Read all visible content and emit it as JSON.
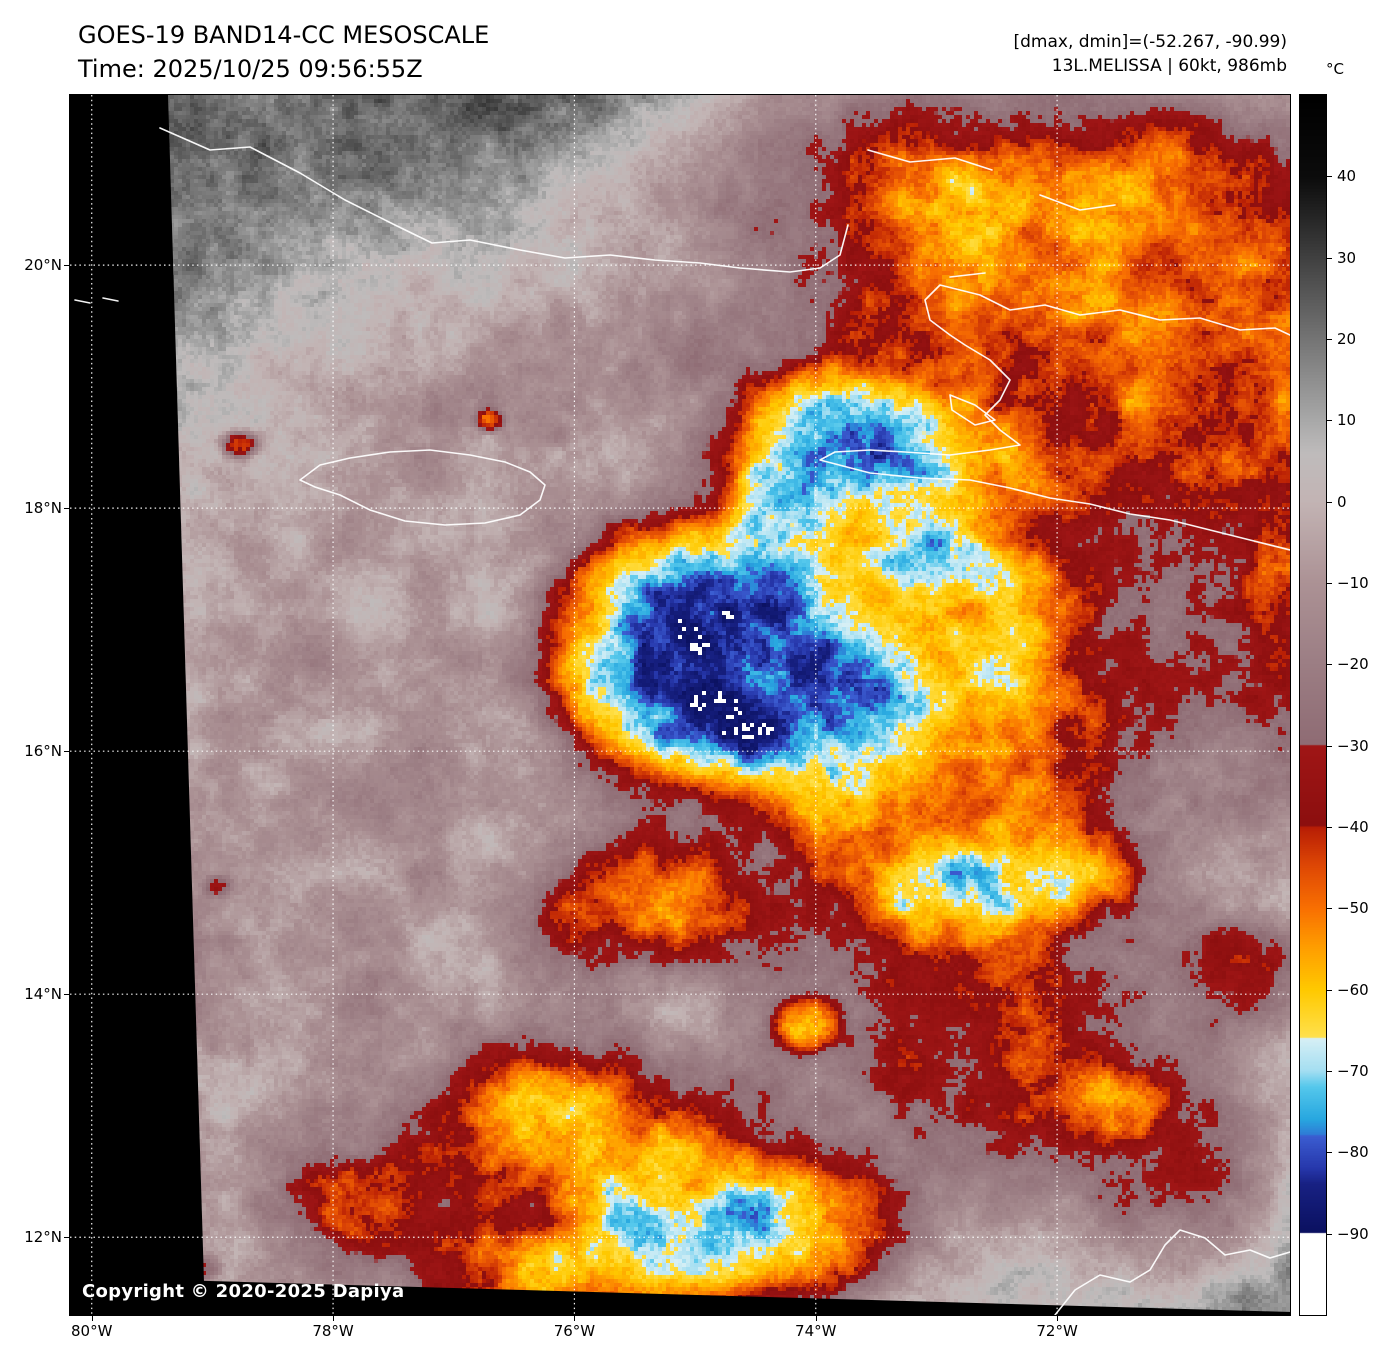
{
  "header": {
    "title": "GOES-19 BAND14-CC MESOSCALE",
    "time_line": "Time: 2025/10/25 09:56:55Z",
    "range_line": "[dmax, dmin]=(-52.267, -90.99)",
    "storm_line": "13L.MELISSA | 60kt, 986mb"
  },
  "map": {
    "copyright": "Copyright © 2020-2025 Dapiya",
    "extent": {
      "lon_min": -80.18,
      "lon_max": -70.07,
      "lat_min": 11.36,
      "lat_max": 21.4
    },
    "lat_ticks": [
      {
        "label": "20°N",
        "value": 20
      },
      {
        "label": "18°N",
        "value": 18
      },
      {
        "label": "16°N",
        "value": 16
      },
      {
        "label": "14°N",
        "value": 14
      },
      {
        "label": "12°N",
        "value": 12
      }
    ],
    "lon_ticks": [
      {
        "label": "80°W",
        "value": -80
      },
      {
        "label": "78°W",
        "value": -78
      },
      {
        "label": "76°W",
        "value": -76
      },
      {
        "label": "74°W",
        "value": -74
      },
      {
        "label": "72°W",
        "value": -72
      }
    ]
  },
  "colorbar": {
    "unit": "°C",
    "domain": [
      50,
      -100
    ],
    "below_value": -90,
    "below_color": "#ffffff",
    "ticks": [
      {
        "label": "40",
        "value": 40
      },
      {
        "label": "30",
        "value": 30
      },
      {
        "label": "20",
        "value": 20
      },
      {
        "label": "10",
        "value": 10
      },
      {
        "label": "0",
        "value": 0
      },
      {
        "label": "−10",
        "value": -10
      },
      {
        "label": "−20",
        "value": -20
      },
      {
        "label": "−30",
        "value": -30
      },
      {
        "label": "−40",
        "value": -40
      },
      {
        "label": "−50",
        "value": -50
      },
      {
        "label": "−60",
        "value": -60
      },
      {
        "label": "−70",
        "value": -70
      },
      {
        "label": "−80",
        "value": -80
      },
      {
        "label": "−90",
        "value": -90
      }
    ],
    "stops": [
      [
        50,
        "#000000"
      ],
      [
        40,
        "#0c0c0c"
      ],
      [
        30,
        "#414141"
      ],
      [
        20,
        "#757575"
      ],
      [
        10,
        "#a9a9a9"
      ],
      [
        6,
        "#bfbcbc"
      ],
      [
        0,
        "#c3b4b4"
      ],
      [
        -10,
        "#ac9295"
      ],
      [
        -20,
        "#9c7e84"
      ],
      [
        -29.9,
        "#8f6c74"
      ],
      [
        -30,
        "#a01616"
      ],
      [
        -39.9,
        "#8c0f0f"
      ],
      [
        -40,
        "#b81e06"
      ],
      [
        -45,
        "#e04a05"
      ],
      [
        -50,
        "#f97002"
      ],
      [
        -55,
        "#ffa000"
      ],
      [
        -60,
        "#ffc900"
      ],
      [
        -65.9,
        "#ffe14d"
      ],
      [
        -66,
        "#d8f0f6"
      ],
      [
        -70,
        "#a5dff2"
      ],
      [
        -72,
        "#55c8ec"
      ],
      [
        -76,
        "#28a8e0"
      ],
      [
        -77.9,
        "#2f7ad6"
      ],
      [
        -78,
        "#3c5ed2"
      ],
      [
        -82,
        "#2738ac"
      ],
      [
        -84,
        "#182183"
      ],
      [
        -90,
        "#0b1160"
      ]
    ]
  },
  "field": {
    "feature_format": "[lon, lat, sigma_lon, sigma_lat, cooling_amp_C, shape_exponent]",
    "features": [
      [
        -74.95,
        16.8,
        1.3,
        1.08,
        75,
        2.5
      ],
      [
        -75.05,
        16.95,
        0.6,
        0.5,
        14,
        2.0
      ],
      [
        -73.2,
        16.4,
        1.75,
        2.0,
        58,
        1.4
      ],
      [
        -73.9,
        18.35,
        0.95,
        0.8,
        52,
        1.6
      ],
      [
        -73.55,
        16.15,
        0.5,
        0.42,
        30,
        1.5
      ],
      [
        -73.0,
        17.45,
        0.55,
        0.45,
        30,
        1.5
      ],
      [
        -72.85,
        14.8,
        0.55,
        0.45,
        34,
        1.5
      ],
      [
        -71.85,
        15.0,
        0.5,
        0.4,
        30,
        1.5
      ],
      [
        -70.45,
        14.15,
        0.55,
        0.5,
        36,
        1.5
      ],
      [
        -71.5,
        13.1,
        0.4,
        0.35,
        28,
        1.5
      ],
      [
        -70.6,
        12.85,
        0.6,
        0.5,
        24,
        1.3
      ],
      [
        -72.2,
        13.5,
        1.35,
        1.1,
        30,
        1.2
      ],
      [
        -71.8,
        19.9,
        2.8,
        1.7,
        38,
        1.6
      ],
      [
        -69.6,
        17.2,
        1.5,
        1.9,
        34,
        1.5
      ],
      [
        -73.6,
        21.1,
        1.7,
        0.9,
        26,
        1.2
      ],
      [
        -75.5,
        14.75,
        0.9,
        0.55,
        42,
        1.3
      ],
      [
        -76.35,
        13.0,
        0.95,
        0.62,
        52,
        1.3
      ],
      [
        -76.2,
        13.2,
        0.5,
        0.3,
        12,
        1.5
      ],
      [
        -75.1,
        12.3,
        1.05,
        0.72,
        54,
        1.3
      ],
      [
        -74.0,
        12.05,
        0.85,
        0.6,
        46,
        1.3
      ],
      [
        -74.05,
        13.75,
        0.3,
        0.24,
        48,
        1.8
      ],
      [
        -75.6,
        11.6,
        0.9,
        0.5,
        44,
        1.3
      ],
      [
        -77.7,
        12.3,
        0.72,
        0.45,
        34,
        1.3
      ],
      [
        -76.85,
        11.7,
        0.6,
        0.4,
        38,
        1.3
      ],
      [
        -70.9,
        12.2,
        0.8,
        0.6,
        26,
        1.3
      ],
      [
        -78.78,
        18.52,
        0.15,
        0.11,
        42,
        1.5
      ],
      [
        -76.7,
        18.72,
        0.12,
        0.09,
        36,
        1.5
      ],
      [
        -78.95,
        14.9,
        0.12,
        0.09,
        22,
        1.5
      ],
      [
        -79.05,
        11.75,
        0.13,
        0.09,
        24,
        1.5
      ]
    ],
    "mask_blobs": [
      [
        -74.8,
        15.8,
        5.2,
        4.6
      ],
      [
        -78.5,
        13.2,
        3.6,
        3.2
      ],
      [
        -71.5,
        19.0,
        3.0,
        2.5
      ]
    ],
    "nodata_polygons": [
      {
        "name": "sector-left-edge",
        "points": [
          [
            0,
            0
          ],
          [
            98,
            0
          ],
          [
            135,
            1220
          ],
          [
            0,
            1220
          ]
        ]
      },
      {
        "name": "sector-bottom-edge",
        "points": [
          [
            0,
            1182
          ],
          [
            1220,
            1217
          ],
          [
            1220,
            1220
          ],
          [
            0,
            1220
          ]
        ]
      }
    ]
  },
  "coastlines": [
    {
      "name": "cuba-south-coast",
      "points": [
        [
          90,
          33
        ],
        [
          140,
          55
        ],
        [
          180,
          52
        ],
        [
          230,
          78
        ],
        [
          275,
          105
        ],
        [
          325,
          130
        ],
        [
          362,
          148
        ],
        [
          400,
          145
        ],
        [
          450,
          155
        ],
        [
          495,
          163
        ],
        [
          540,
          160
        ],
        [
          585,
          165
        ],
        [
          630,
          168
        ],
        [
          670,
          173
        ],
        [
          720,
          177
        ],
        [
          750,
          173
        ],
        [
          770,
          160
        ],
        [
          778,
          130
        ]
      ]
    },
    {
      "name": "bahamas-cays-1",
      "points": [
        [
          798,
          55
        ],
        [
          840,
          67
        ],
        [
          885,
          63
        ],
        [
          922,
          75
        ]
      ]
    },
    {
      "name": "bahamas-cays-2",
      "points": [
        [
          970,
          100
        ],
        [
          1010,
          115
        ],
        [
          1045,
          110
        ]
      ]
    },
    {
      "name": "tortuga-island",
      "points": [
        [
          880,
          182
        ],
        [
          915,
          178
        ]
      ]
    },
    {
      "name": "hispaniola",
      "points": [
        [
          1220,
          240
        ],
        [
          1205,
          233
        ],
        [
          1170,
          235
        ],
        [
          1130,
          223
        ],
        [
          1090,
          225
        ],
        [
          1050,
          215
        ],
        [
          1010,
          220
        ],
        [
          975,
          210
        ],
        [
          940,
          215
        ],
        [
          910,
          200
        ],
        [
          870,
          190
        ],
        [
          855,
          205
        ],
        [
          860,
          225
        ],
        [
          880,
          240
        ],
        [
          895,
          250
        ],
        [
          920,
          265
        ],
        [
          940,
          285
        ],
        [
          930,
          305
        ],
        [
          915,
          320
        ],
        [
          930,
          335
        ],
        [
          950,
          350
        ],
        [
          920,
          355
        ],
        [
          880,
          360
        ],
        [
          835,
          357
        ],
        [
          800,
          355
        ],
        [
          765,
          357
        ],
        [
          750,
          365
        ],
        [
          800,
          378
        ],
        [
          850,
          383
        ],
        [
          900,
          385
        ],
        [
          940,
          393
        ],
        [
          980,
          403
        ],
        [
          1020,
          409
        ],
        [
          1060,
          419
        ],
        [
          1100,
          425
        ],
        [
          1140,
          435
        ],
        [
          1180,
          445
        ],
        [
          1220,
          455
        ]
      ]
    },
    {
      "name": "gonave-island",
      "points": [
        [
          880,
          300
        ],
        [
          905,
          310
        ],
        [
          925,
          325
        ],
        [
          905,
          330
        ],
        [
          882,
          315
        ],
        [
          880,
          300
        ]
      ]
    },
    {
      "name": "jamaica",
      "points": [
        [
          230,
          385
        ],
        [
          250,
          370
        ],
        [
          280,
          363
        ],
        [
          320,
          357
        ],
        [
          360,
          355
        ],
        [
          400,
          360
        ],
        [
          435,
          367
        ],
        [
          460,
          377
        ],
        [
          475,
          390
        ],
        [
          470,
          405
        ],
        [
          450,
          420
        ],
        [
          415,
          428
        ],
        [
          375,
          430
        ],
        [
          335,
          426
        ],
        [
          300,
          415
        ],
        [
          270,
          400
        ],
        [
          245,
          392
        ],
        [
          230,
          385
        ]
      ]
    },
    {
      "name": "cayman-islands-1",
      "points": [
        [
          5,
          205
        ],
        [
          20,
          208
        ]
      ]
    },
    {
      "name": "cayman-islands-2",
      "points": [
        [
          33,
          203
        ],
        [
          48,
          206
        ]
      ]
    },
    {
      "name": "south-america-coast",
      "points": [
        [
          985,
          1220
        ],
        [
          1005,
          1195
        ],
        [
          1030,
          1180
        ],
        [
          1060,
          1187
        ],
        [
          1080,
          1175
        ],
        [
          1095,
          1150
        ],
        [
          1110,
          1135
        ],
        [
          1135,
          1143
        ],
        [
          1155,
          1160
        ],
        [
          1180,
          1155
        ],
        [
          1200,
          1163
        ],
        [
          1220,
          1157
        ]
      ]
    }
  ]
}
